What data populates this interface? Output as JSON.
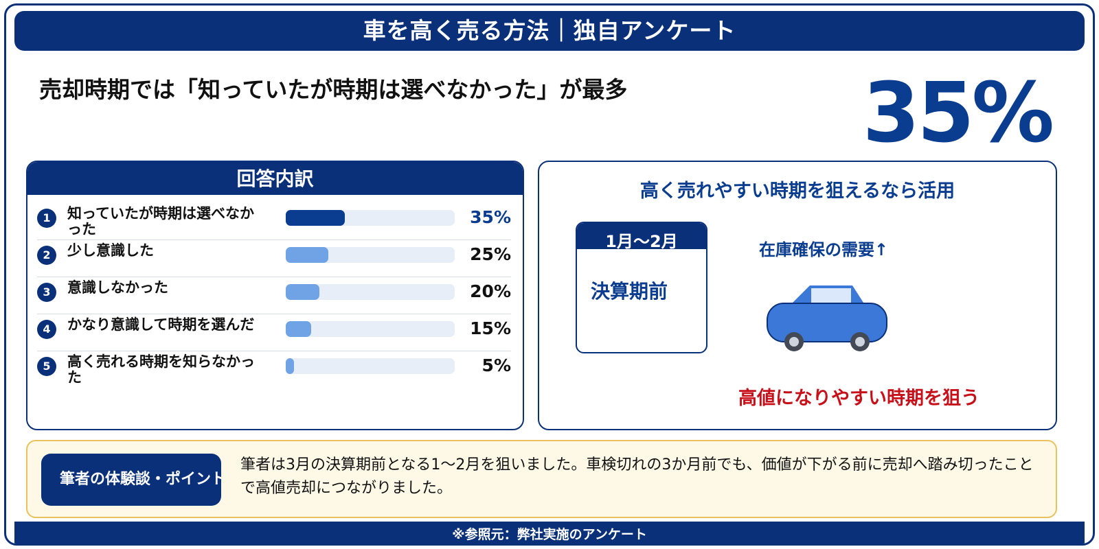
{
  "banner": {
    "title": "車を高く売る方法｜独自アンケート"
  },
  "headline": "売却時期では「知っていたが時期は選べなかった」が最多",
  "highlight_value": "35%",
  "breakdown": {
    "title": "回答内訳"
  },
  "chart_data": {
    "type": "bar",
    "orientation": "horizontal",
    "title": "回答内訳",
    "categories": [
      "知っていたが時期は選べなかった",
      "少し意識した",
      "意識しなかった",
      "かなり意識して時期を選んだ",
      "高く売れる時期を知らなかった"
    ],
    "values": [
      35,
      25,
      20,
      15,
      5
    ],
    "value_labels": [
      "35%",
      "25%",
      "20%",
      "15%",
      "5%"
    ],
    "ranks": [
      "1",
      "2",
      "3",
      "4",
      "5"
    ],
    "unit": "%",
    "xlim": [
      0,
      100
    ],
    "grid": false,
    "legend": "none"
  },
  "tip_panel": {
    "title": "高く売れやすい時期を狙えるなら活用",
    "calendar_header": "1月～2月",
    "calendar_body": "決算期前",
    "demand": "在庫確保の需要↑",
    "conclusion": "高値になりやすい時期を狙う",
    "car_icon": "car-icon"
  },
  "experience": {
    "label": "筆者の体験談・ポイント",
    "text": "筆者は3月の決算期前となる1～2月を狙いました。車検切れの3か月前でも、価値が下がる前に売却へ踏み切ったことで高値売却につながりました。"
  },
  "footer": {
    "source": "※参照元：弊社実施のアンケート"
  },
  "colors": {
    "navy": "#0a3079",
    "accent_blue": "#0a3d8f",
    "bar_light": "#6fa3e6",
    "track": "#e8eef8",
    "red": "#c8101a",
    "tip_bg": "#fef9e7",
    "tip_border": "#e8c25a"
  }
}
